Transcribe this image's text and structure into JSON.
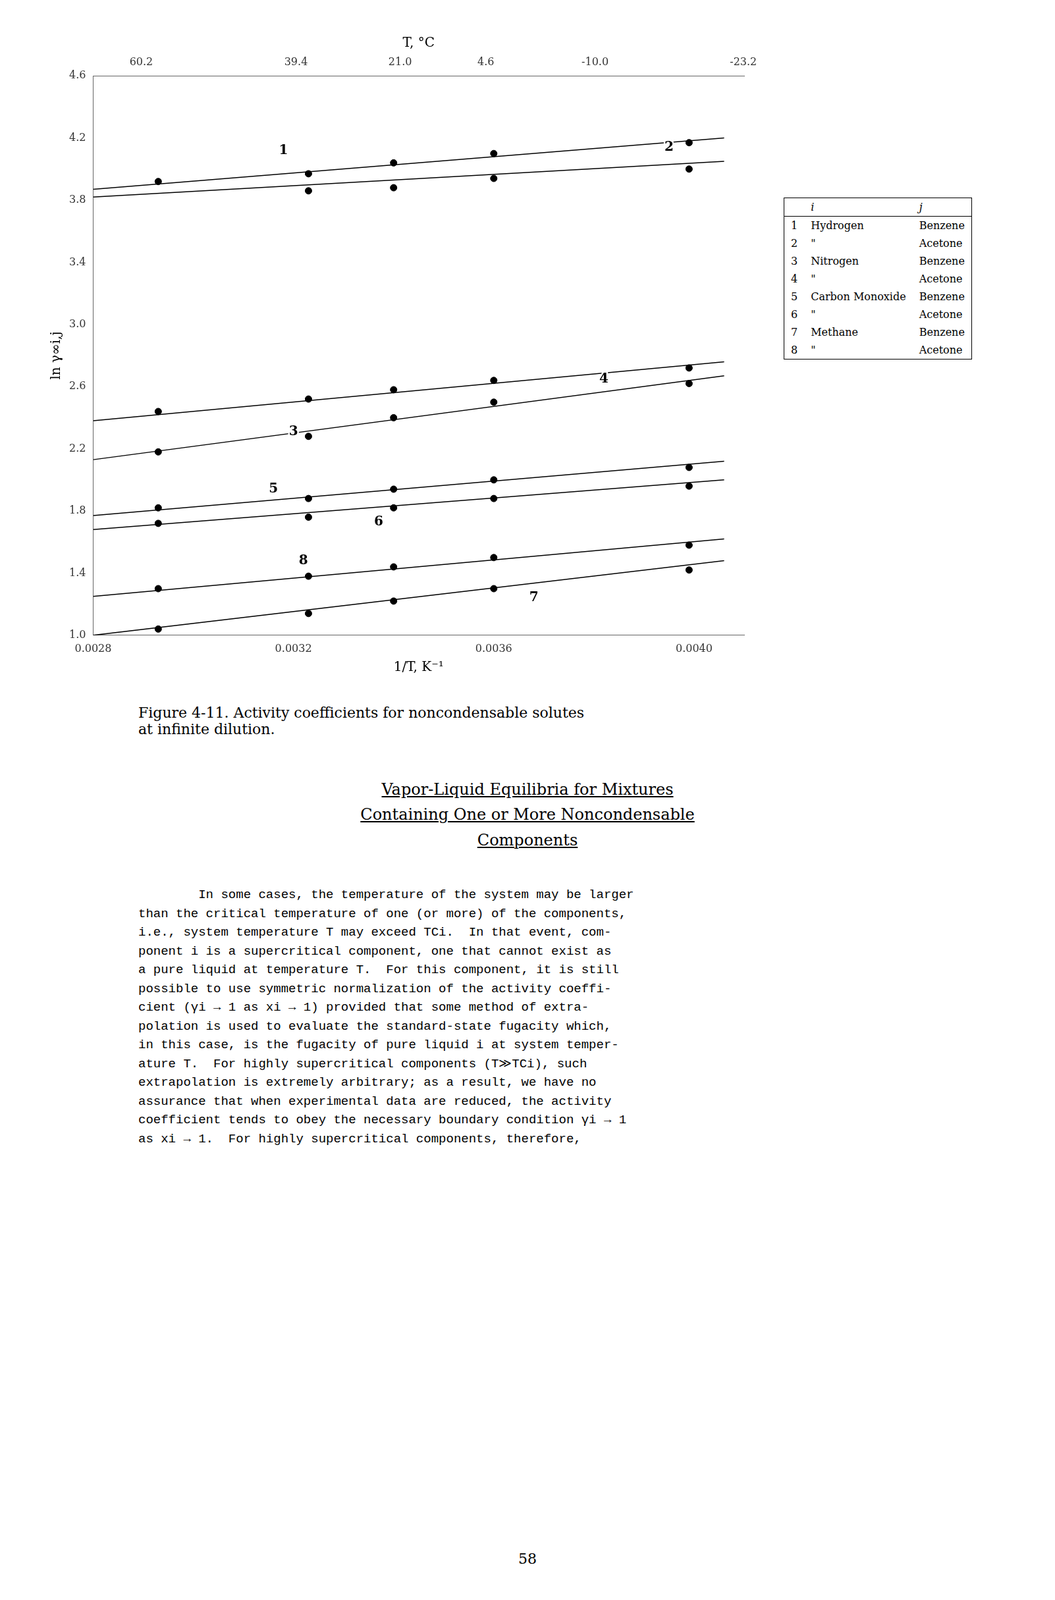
{
  "chart_data": {
    "type": "scatter",
    "x_label": "1/T, K⁻¹",
    "y_label": "ln γ∞i,j",
    "x2_label": "T, °C",
    "xlim": [
      0.0028,
      0.0041
    ],
    "xticks": [
      0.0028,
      0.0032,
      0.0036,
      {
        "value": 0.004,
        "label": "0.0040"
      }
    ],
    "ylim": [
      1.0,
      4.6
    ],
    "yticks": [
      {
        "value": 1.0,
        "label": "1.0"
      },
      1.4,
      1.8,
      2.2,
      2.6,
      {
        "value": 3.0,
        "label": "3.0"
      },
      3.4,
      3.8,
      4.2,
      4.6
    ],
    "x2lim": [
      0.0028,
      0.0041
    ],
    "x2ticks": [
      {
        "value": 0.002896,
        "label": "60.2"
      },
      {
        "value": 0.0032051,
        "label": "39.4"
      },
      {
        "value": 0.003413,
        "label": "21.0"
      },
      {
        "value": 0.0035842,
        "label": "4.6"
      },
      {
        "value": 0.0038023,
        "label": "-10.0"
      },
      {
        "value": 0.0040984,
        "label": "-23.2"
      }
    ],
    "grid": false,
    "series": [
      {
        "name": "1",
        "color": "#000000",
        "marker": "circle",
        "line_style": "solid",
        "x": [
          0.00293,
          0.00323,
          0.0034,
          0.0036,
          0.00399
        ],
        "values": [
          3.92,
          3.97,
          4.04,
          4.1,
          4.17
        ],
        "fit_x": [
          0.0028,
          0.00406
        ],
        "fit_values": [
          3.87,
          4.2
        ],
        "label_x": 0.00318,
        "label_y": 4.12
      },
      {
        "name": "2",
        "color": "#000000",
        "marker": "circle",
        "line_style": "solid",
        "x": [
          0.00323,
          0.0034,
          0.0036,
          0.00399
        ],
        "values": [
          3.86,
          3.88,
          3.94,
          4.0
        ],
        "fit_x": [
          0.0028,
          0.00406
        ],
        "fit_values": [
          3.82,
          4.05
        ],
        "label_x": 0.00395,
        "label_y": 4.14
      },
      {
        "name": "3",
        "color": "#000000",
        "marker": "circle",
        "line_style": "solid",
        "x": [
          0.00293,
          0.00323,
          0.0034,
          0.0036,
          0.00399
        ],
        "values": [
          2.18,
          2.28,
          2.4,
          2.5,
          2.62
        ],
        "fit_x": [
          0.0028,
          0.00406
        ],
        "fit_values": [
          2.13,
          2.67
        ],
        "label_x": 0.0032,
        "label_y": 2.31
      },
      {
        "name": "4",
        "color": "#000000",
        "marker": "circle",
        "line_style": "solid",
        "x": [
          0.00293,
          0.00323,
          0.0034,
          0.0036,
          0.00399
        ],
        "values": [
          2.44,
          2.52,
          2.58,
          2.64,
          2.72
        ],
        "fit_x": [
          0.0028,
          0.00406
        ],
        "fit_values": [
          2.38,
          2.76
        ],
        "label_x": 0.00382,
        "label_y": 2.65
      },
      {
        "name": "5",
        "color": "#000000",
        "marker": "circle",
        "line_style": "solid",
        "x": [
          0.00293,
          0.00323,
          0.0034,
          0.0036,
          0.00399
        ],
        "values": [
          1.82,
          1.88,
          1.94,
          2.0,
          2.08
        ],
        "fit_x": [
          0.0028,
          0.00406
        ],
        "fit_values": [
          1.77,
          2.12
        ],
        "label_x": 0.00316,
        "label_y": 1.94
      },
      {
        "name": "6",
        "color": "#000000",
        "marker": "circle",
        "line_style": "solid",
        "x": [
          0.00293,
          0.00323,
          0.0034,
          0.0036,
          0.00399
        ],
        "values": [
          1.72,
          1.76,
          1.82,
          1.88,
          1.96
        ],
        "fit_x": [
          0.0028,
          0.00406
        ],
        "fit_values": [
          1.68,
          2.0
        ],
        "label_x": 0.00337,
        "label_y": 1.73
      },
      {
        "name": "7",
        "color": "#000000",
        "marker": "circle",
        "line_style": "solid",
        "x": [
          0.00293,
          0.00323,
          0.0034,
          0.0036,
          0.00399
        ],
        "values": [
          1.04,
          1.14,
          1.22,
          1.3,
          1.42
        ],
        "fit_x": [
          0.0028,
          0.00406
        ],
        "fit_values": [
          1.0,
          1.48
        ],
        "label_x": 0.00368,
        "label_y": 1.24
      },
      {
        "name": "8",
        "color": "#000000",
        "marker": "circle",
        "line_style": "solid",
        "x": [
          0.00293,
          0.00323,
          0.0034,
          0.0036,
          0.00399
        ],
        "values": [
          1.3,
          1.38,
          1.44,
          1.5,
          1.58
        ],
        "fit_x": [
          0.0028,
          0.00406
        ],
        "fit_values": [
          1.25,
          1.62
        ],
        "label_x": 0.00322,
        "label_y": 1.48
      }
    ],
    "key_table": {
      "columns": [
        "i",
        "j"
      ],
      "rows": [
        [
          "1",
          "Hydrogen",
          "Benzene"
        ],
        [
          "2",
          "\"",
          "Acetone"
        ],
        [
          "3",
          "Nitrogen",
          "Benzene"
        ],
        [
          "4",
          "\"",
          "Acetone"
        ],
        [
          "5",
          "Carbon Monoxide",
          "Benzene"
        ],
        [
          "6",
          "\"",
          "Acetone"
        ],
        [
          "7",
          "Methane",
          "Benzene"
        ],
        [
          "8",
          "\"",
          "Acetone"
        ]
      ]
    }
  },
  "figure_caption": "Figure 4-11.  Activity coefficients for noncondensable solutes\nat infinite dilution.",
  "section_header": [
    "Vapor-Liquid Equilibria for Mixtures",
    "Containing One or More Noncondensable",
    "Components"
  ],
  "body_text": "        In some cases, the temperature of the system may be larger\nthan the critical temperature of one (or more) of the components,\ni.e., system temperature T may exceed TCi.  In that event, com-\nponent i is a supercritical component, one that cannot exist as\na pure liquid at temperature T.  For this component, it is still\npossible to use symmetric normalization of the activity coeffi-\ncient (γi → 1 as xi → 1) provided that some method of extra-\npolation is used to evaluate the standard-state fugacity which,\nin this case, is the fugacity of pure liquid i at system temper-\nature T.  For highly supercritical components (T≫TCi), such\nextrapolation is extremely arbitrary; as a result, we have no\nassurance that when experimental data are reduced, the activity\ncoefficient tends to obey the necessary boundary condition γi → 1\nas xi → 1.  For highly supercritical components, therefore,",
  "page_number": "58"
}
